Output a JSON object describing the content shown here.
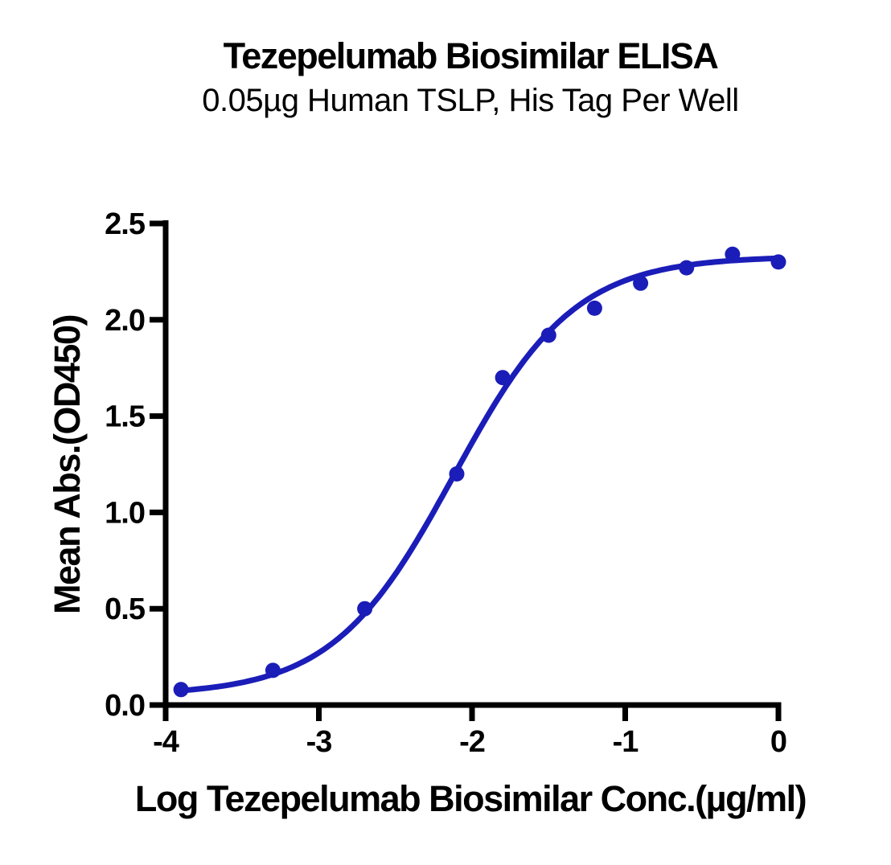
{
  "title": "Tezepelumab Biosimilar ELISA",
  "subtitle": "0.05µg Human TSLP, His Tag Per Well",
  "chart_data": {
    "type": "scatter",
    "title": "Tezepelumab Biosimilar ELISA",
    "subtitle": "0.05µg Human TSLP, His Tag Per Well",
    "xlabel": "Log Tezepelumab Biosimilar Conc.(µg/ml)",
    "ylabel": "Mean Abs.(OD450)",
    "xlim": [
      -4,
      0
    ],
    "ylim": [
      0,
      2.5
    ],
    "x_ticks": [
      -4,
      -3,
      -2,
      -1,
      0
    ],
    "x_tick_labels": [
      "-4",
      "-3",
      "-2",
      "-1",
      "0"
    ],
    "y_ticks": [
      0,
      0.5,
      1.0,
      1.5,
      2.0,
      2.5
    ],
    "y_tick_labels": [
      "0.0",
      "0.5",
      "1.0",
      "1.5",
      "2.0",
      "2.5"
    ],
    "grid": false,
    "legend_position": "none",
    "series": [
      {
        "name": "Tezepelumab Biosimilar",
        "marker": "circle",
        "color": "#1b1db8",
        "x": [
          -3.9,
          -3.3,
          -2.7,
          -2.1,
          -1.8,
          -1.5,
          -1.2,
          -0.9,
          -0.6,
          -0.3,
          0.0
        ],
        "y": [
          0.08,
          0.18,
          0.5,
          1.2,
          1.7,
          1.92,
          2.06,
          2.19,
          2.27,
          2.34,
          2.3
        ]
      }
    ],
    "fit_curve": {
      "model": "4PL",
      "bottom": 0.05,
      "top": 2.33,
      "logEC50": -2.12,
      "hill": 1.1,
      "x_start": -3.9,
      "x_end": 0.0,
      "color": "#1b1db8"
    }
  },
  "colors": {
    "series_blue": "#1b1db8",
    "axis_black": "#000000",
    "background": "#ffffff"
  }
}
